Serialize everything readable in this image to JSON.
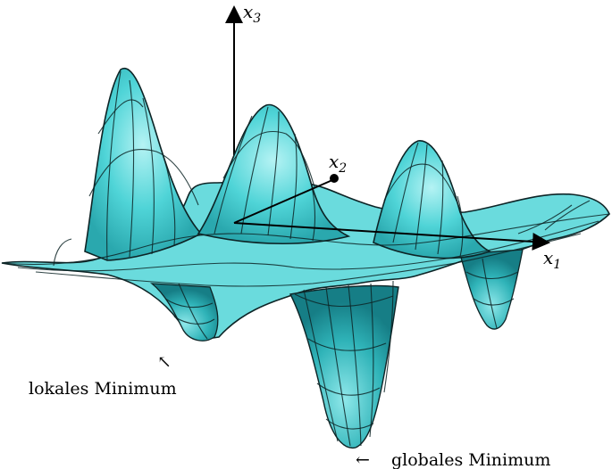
{
  "axes": {
    "x1": {
      "base": "x",
      "sub": "1"
    },
    "x2": {
      "base": "x",
      "sub": "2"
    },
    "x3": {
      "base": "x",
      "sub": "3"
    }
  },
  "annotations": {
    "local_min": {
      "text": "lokales Minimum",
      "arrow": "↖"
    },
    "global_min": {
      "text": "globales Minimum",
      "arrow": "←"
    }
  },
  "colors": {
    "surface_fill": "#49d3d6",
    "surface_light": "#a6eef0",
    "surface_dark": "#1a8a92",
    "mesh": "#0d2426",
    "axis": "#000000"
  }
}
